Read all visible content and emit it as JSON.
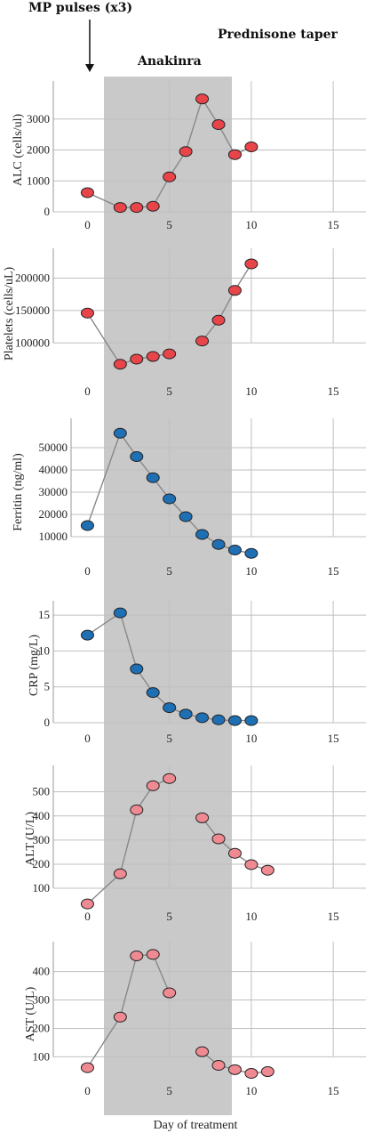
{
  "header": {
    "pulses_label": "MP pulses (x3)",
    "anakinra_label": "Anakinra",
    "prednisone_label": "Prednisone taper"
  },
  "colors": {
    "red_marker": "#e8454a",
    "blue_marker": "#1f6fb4",
    "pink_marker": "#ef8a92",
    "shade": "#c9c9c9",
    "line": "#888888",
    "grid": "#bfbfbf"
  },
  "chart_data": [
    {
      "type": "line",
      "ylabel": "ALC (cells/ul)",
      "ylim": [
        0,
        4000
      ],
      "yticks": [
        0,
        1000,
        2000,
        3000
      ],
      "ytick_labels": [
        "0",
        "1000",
        "2000",
        "3000"
      ],
      "xlim": [
        -1,
        17
      ],
      "xticks": [
        0,
        5,
        10,
        15
      ],
      "xtick_labels": [
        "0",
        "5",
        "10",
        "15"
      ],
      "marker_color": "red",
      "segments": [
        [
          [
            0,
            620
          ],
          [
            2,
            140
          ],
          [
            3,
            140
          ],
          [
            4,
            180
          ],
          [
            5,
            1130
          ],
          [
            6,
            1950
          ],
          [
            7,
            3650
          ],
          [
            8,
            2820
          ],
          [
            9,
            1850
          ],
          [
            10,
            2100
          ]
        ]
      ]
    },
    {
      "type": "line",
      "ylabel": "Platelets (cells/uL)",
      "ylim": [
        55000,
        235000
      ],
      "yticks": [
        100000,
        150000,
        200000
      ],
      "ytick_labels": [
        "100000",
        "150000",
        "200000"
      ],
      "xlim": [
        -1,
        17
      ],
      "xticks": [
        0,
        5,
        10,
        15
      ],
      "xtick_labels": [
        "0",
        "5",
        "10",
        "15"
      ],
      "marker_color": "red",
      "segments": [
        [
          [
            0,
            146000
          ],
          [
            2,
            67000
          ],
          [
            3,
            75000
          ],
          [
            4,
            79000
          ],
          [
            5,
            83000
          ]
        ],
        [
          [
            7,
            103000
          ],
          [
            8,
            135000
          ],
          [
            9,
            181000
          ],
          [
            10,
            222000
          ]
        ]
      ]
    },
    {
      "type": "line",
      "ylabel": "Ferritin (ng/ml)",
      "ylim": [
        0,
        60000
      ],
      "yticks": [
        10000,
        20000,
        30000,
        40000,
        50000
      ],
      "ytick_labels": [
        "10000",
        "20000",
        "30000",
        "40000",
        "50000"
      ],
      "xlim": [
        -1,
        17
      ],
      "xticks": [
        0,
        5,
        10,
        15
      ],
      "xtick_labels": [
        "0",
        "5",
        "10",
        "15"
      ],
      "marker_color": "blue",
      "segments": [
        [
          [
            0,
            15000
          ],
          [
            2,
            56500
          ],
          [
            3,
            46000
          ],
          [
            4,
            36500
          ],
          [
            5,
            27000
          ],
          [
            6,
            19000
          ],
          [
            7,
            11000
          ],
          [
            8,
            6500
          ],
          [
            9,
            4000
          ],
          [
            10,
            2500
          ]
        ]
      ]
    },
    {
      "type": "line",
      "ylabel": "CRP (mg/L)",
      "ylim": [
        0,
        16
      ],
      "yticks": [
        0,
        5,
        10,
        15
      ],
      "ytick_labels": [
        "0",
        "5",
        "10",
        "15"
      ],
      "xlim": [
        -1,
        17
      ],
      "xticks": [
        0,
        5,
        10,
        15
      ],
      "xtick_labels": [
        "0",
        "5",
        "10",
        "15"
      ],
      "marker_color": "blue",
      "segments": [
        [
          [
            0,
            12.2
          ],
          [
            2,
            15.3
          ],
          [
            3,
            7.5
          ],
          [
            4,
            4.2
          ],
          [
            5,
            2.1
          ],
          [
            6,
            1.2
          ],
          [
            7,
            0.7
          ],
          [
            8,
            0.4
          ],
          [
            9,
            0.3
          ],
          [
            10,
            0.3
          ]
        ]
      ]
    },
    {
      "type": "line",
      "ylabel": "ALT (U/L)",
      "ylim": [
        30,
        580
      ],
      "yticks": [
        100,
        200,
        300,
        400,
        500
      ],
      "ytick_labels": [
        "100",
        "200",
        "300",
        "400",
        "500"
      ],
      "xlim": [
        -1,
        17
      ],
      "xticks": [
        0,
        5,
        10,
        15
      ],
      "xtick_labels": [
        "0",
        "5",
        "10",
        "15"
      ],
      "marker_color": "pink",
      "segments": [
        [
          [
            0,
            35
          ],
          [
            2,
            160
          ],
          [
            3,
            425
          ],
          [
            4,
            525
          ],
          [
            5,
            555
          ]
        ],
        [
          [
            7,
            392
          ],
          [
            8,
            305
          ],
          [
            9,
            245
          ],
          [
            10,
            198
          ],
          [
            11,
            175
          ]
        ]
      ]
    },
    {
      "type": "line",
      "ylabel": "AST (U/L)",
      "ylim": [
        20,
        480
      ],
      "yticks": [
        100,
        200,
        300,
        400
      ],
      "ytick_labels": [
        "100",
        "200",
        "300",
        "400"
      ],
      "xlim": [
        -1,
        17
      ],
      "xticks": [
        0,
        5,
        10,
        15
      ],
      "xtick_labels": [
        "0",
        "5",
        "10",
        "15"
      ],
      "xlabel": "Day of treatment",
      "marker_color": "pink",
      "segments": [
        [
          [
            0,
            62
          ],
          [
            2,
            240
          ],
          [
            3,
            455
          ],
          [
            4,
            460
          ],
          [
            5,
            325
          ]
        ],
        [
          [
            7,
            118
          ],
          [
            8,
            70
          ],
          [
            9,
            55
          ],
          [
            10,
            42
          ],
          [
            11,
            48
          ]
        ]
      ]
    }
  ]
}
